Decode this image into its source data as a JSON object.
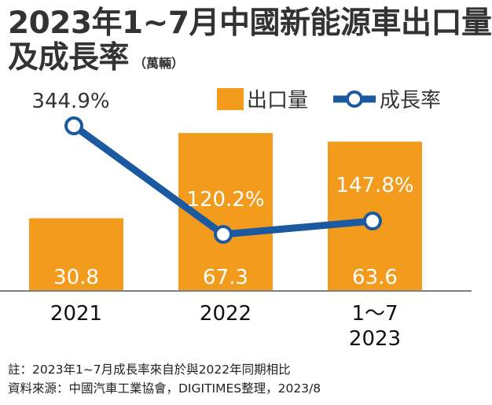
{
  "title": {
    "line1": "2023年1~7月中國新能源車出口量",
    "line2": "及成長率",
    "unit": "（萬輛）"
  },
  "notes": {
    "line1": "註：2023年1~7月成長率來自於與2022年同期相比",
    "line2": "資料來源：中國汽車工業協會，DIGITIMES整理，2023/8"
  },
  "colors": {
    "bar": "#F29B1D",
    "line": "#1B5AA0",
    "text": "#333333"
  },
  "chart_data": {
    "type": "bar",
    "categories": [
      [
        "2021"
      ],
      [
        "2022"
      ],
      [
        "1～7",
        "2023"
      ]
    ],
    "series": [
      {
        "name": "出口量",
        "type": "bar",
        "values": [
          30.8,
          67.3,
          63.6
        ],
        "labels": [
          "30.8",
          "67.3",
          "63.6"
        ]
      },
      {
        "name": "成長率",
        "type": "line",
        "values": [
          344.9,
          120.2,
          147.8
        ],
        "labels": [
          "344.9%",
          "120.2%",
          "147.8%"
        ]
      }
    ],
    "legend_position": "top-right",
    "grid": false
  }
}
